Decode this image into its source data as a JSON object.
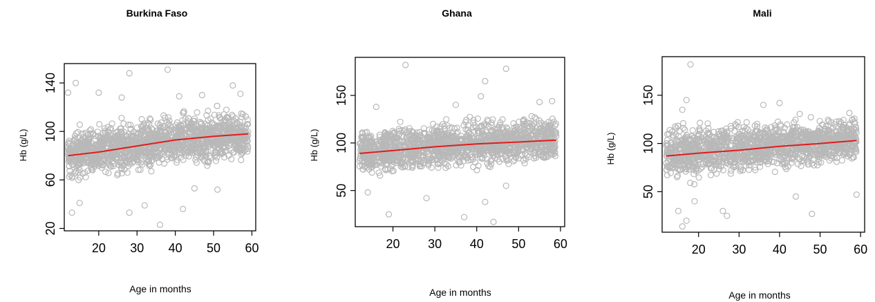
{
  "colors": {
    "points": "#b8b8b8",
    "trend": "#e11b1b",
    "frame": "#000000"
  },
  "chart_data": [
    {
      "type": "scatter",
      "title": "Burkina Faso",
      "xlabel": "Age in months",
      "ylabel": "Hb (g/L)",
      "xlim": [
        11,
        61
      ],
      "ylim": [
        18,
        156
      ],
      "xticks": [
        20,
        30,
        40,
        50,
        60
      ],
      "yticks": [
        20,
        60,
        100,
        140
      ],
      "grid": false,
      "legend": "none",
      "trend": {
        "x": [
          12,
          20,
          30,
          40,
          50,
          59
        ],
        "y": [
          80,
          83,
          88,
          93,
          96,
          98
        ]
      },
      "cloud": {
        "x_range": [
          12,
          59
        ],
        "core_low": [
          55,
          58,
          62,
          68,
          70,
          72
        ],
        "core_high": [
          108,
          110,
          114,
          120,
          121,
          122
        ]
      },
      "outliers": [
        {
          "x": 12,
          "y": 132
        },
        {
          "x": 14,
          "y": 140
        },
        {
          "x": 20,
          "y": 132
        },
        {
          "x": 26,
          "y": 128
        },
        {
          "x": 28,
          "y": 148
        },
        {
          "x": 38,
          "y": 151
        },
        {
          "x": 41,
          "y": 129
        },
        {
          "x": 47,
          "y": 130
        },
        {
          "x": 55,
          "y": 138
        },
        {
          "x": 57,
          "y": 131
        },
        {
          "x": 13,
          "y": 33
        },
        {
          "x": 28,
          "y": 33
        },
        {
          "x": 32,
          "y": 39
        },
        {
          "x": 36,
          "y": 23
        },
        {
          "x": 42,
          "y": 36
        },
        {
          "x": 51,
          "y": 52
        },
        {
          "x": 15,
          "y": 41
        },
        {
          "x": 45,
          "y": 53
        }
      ]
    },
    {
      "type": "scatter",
      "title": "Ghana",
      "xlabel": "Age in months",
      "ylabel": "Hb (g/L)",
      "xlim": [
        11,
        61
      ],
      "ylim": [
        12,
        190
      ],
      "xticks": [
        20,
        30,
        40,
        50,
        60
      ],
      "yticks": [
        50,
        100,
        150
      ],
      "grid": false,
      "legend": "none",
      "trend": {
        "x": [
          12,
          20,
          30,
          40,
          50,
          59
        ],
        "y": [
          89,
          92,
          96,
          99,
          101,
          103
        ]
      },
      "cloud": {
        "x_range": [
          12,
          59
        ],
        "core_low": [
          58,
          62,
          66,
          70,
          72,
          75
        ],
        "core_high": [
          122,
          124,
          127,
          129,
          131,
          133
        ]
      },
      "outliers": [
        {
          "x": 23,
          "y": 182
        },
        {
          "x": 47,
          "y": 178
        },
        {
          "x": 42,
          "y": 165
        },
        {
          "x": 41,
          "y": 149
        },
        {
          "x": 35,
          "y": 140
        },
        {
          "x": 55,
          "y": 143
        },
        {
          "x": 58,
          "y": 144
        },
        {
          "x": 16,
          "y": 138
        },
        {
          "x": 19,
          "y": 25
        },
        {
          "x": 37,
          "y": 22
        },
        {
          "x": 42,
          "y": 38
        },
        {
          "x": 44,
          "y": 17
        },
        {
          "x": 28,
          "y": 42
        },
        {
          "x": 47,
          "y": 55
        },
        {
          "x": 14,
          "y": 48
        }
      ]
    },
    {
      "type": "scatter",
      "title": "Mali",
      "xlabel": "Age in months",
      "ylabel": "Hb (g/L)",
      "xlim": [
        11,
        61
      ],
      "ylim": [
        8,
        190
      ],
      "xticks": [
        20,
        30,
        40,
        50,
        60
      ],
      "yticks": [
        50,
        100,
        150
      ],
      "grid": false,
      "legend": "none",
      "trend": {
        "x": [
          12,
          20,
          30,
          40,
          50,
          59
        ],
        "y": [
          87,
          90,
          93,
          97,
          100,
          103
        ]
      },
      "cloud": {
        "x_range": [
          12,
          59
        ],
        "core_low": [
          56,
          58,
          62,
          66,
          70,
          74
        ],
        "core_high": [
          124,
          126,
          128,
          130,
          132,
          134
        ]
      },
      "outliers": [
        {
          "x": 18,
          "y": 182
        },
        {
          "x": 17,
          "y": 145
        },
        {
          "x": 16,
          "y": 135
        },
        {
          "x": 36,
          "y": 140
        },
        {
          "x": 40,
          "y": 142
        },
        {
          "x": 15,
          "y": 30
        },
        {
          "x": 17,
          "y": 20
        },
        {
          "x": 16,
          "y": 14
        },
        {
          "x": 26,
          "y": 30
        },
        {
          "x": 27,
          "y": 25
        },
        {
          "x": 48,
          "y": 27
        },
        {
          "x": 59,
          "y": 47
        },
        {
          "x": 19,
          "y": 40
        },
        {
          "x": 44,
          "y": 45
        }
      ]
    }
  ]
}
